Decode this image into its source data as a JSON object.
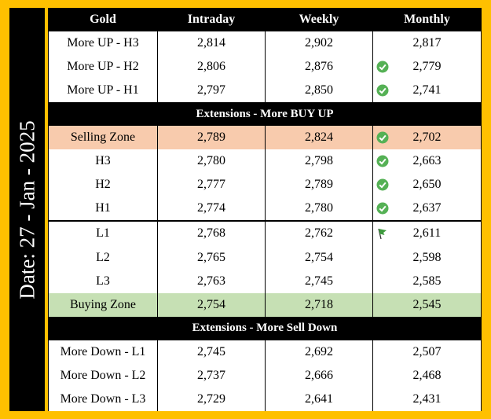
{
  "date_label": "Date: 27 - Jan - 2025",
  "table": {
    "header": [
      "Gold",
      "Intraday",
      "Weekly",
      "Monthly"
    ],
    "rows": [
      [
        "More UP - H3",
        "2,814",
        "2,902",
        "2,817"
      ],
      [
        "More UP - H2",
        "2,806",
        "2,876",
        "2,779"
      ],
      [
        "More UP - H1",
        "2,797",
        "2,850",
        "2,741"
      ],
      [
        "Extensions - More BUY UP"
      ],
      [
        "Selling Zone",
        "2,789",
        "2,824",
        "2,702"
      ],
      [
        "H3",
        "2,780",
        "2,798",
        "2,663"
      ],
      [
        "H2",
        "2,777",
        "2,789",
        "2,650"
      ],
      [
        "H1",
        "2,774",
        "2,780",
        "2,637"
      ],
      [
        "L1",
        "2,768",
        "2,762",
        "2,611"
      ],
      [
        "L2",
        "2,765",
        "2,754",
        "2,598"
      ],
      [
        "L3",
        "2,763",
        "2,745",
        "2,585"
      ],
      [
        "Buying Zone",
        "2,754",
        "2,718",
        "2,545"
      ],
      [
        "Extensions - More Sell Down"
      ],
      [
        "More Down - L1",
        "2,745",
        "2,692",
        "2,507"
      ],
      [
        "More Down - L2",
        "2,737",
        "2,666",
        "2,468"
      ],
      [
        "More Down - L3",
        "2,729",
        "2,641",
        "2,431"
      ]
    ]
  }
}
